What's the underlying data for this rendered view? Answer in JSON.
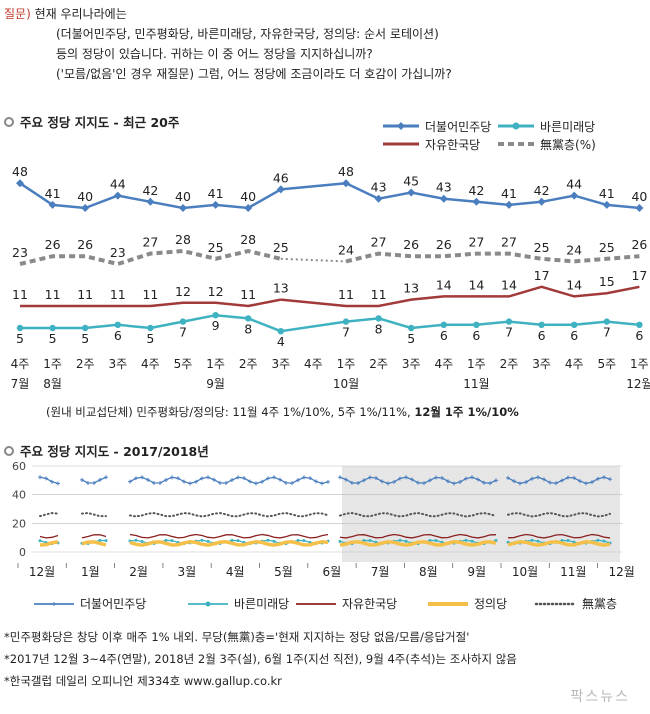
{
  "question": {
    "tag": "질문)",
    "lines": [
      "현재 우리나라에는",
      "(더불어민주당, 민주평화당, 바른미래당, 자유한국당, 정의당: 순서 로테이션)",
      "등의 정당이 있습니다. 귀하는 이 중 어느 정당을 지지하십니까?",
      "('모름/없음'인 경우 재질문) 그럼, 어느 정당에 조금이라도 더 호감이 가십니까?"
    ]
  },
  "chart_data": [
    {
      "type": "line",
      "title": "주요 정당 지지도 - 최근 20주",
      "x": [
        "4주|7월",
        "1주|8월",
        "2주",
        "3주",
        "4주",
        "5주",
        "1주|9월",
        "2주",
        "3주",
        "4주",
        "1주|10월",
        "2주",
        "3주",
        "4주",
        "1주|11월",
        "2주",
        "3주",
        "4주",
        "5주",
        "1주|12월"
      ],
      "series": [
        {
          "name": "더불어민주당",
          "color": "#4a7ebf",
          "marker": "diamond",
          "values": [
            48,
            41,
            40,
            44,
            42,
            40,
            41,
            40,
            46,
            null,
            48,
            43,
            45,
            43,
            42,
            41,
            42,
            44,
            41,
            40
          ]
        },
        {
          "name": "바른미래당",
          "color": "#3fb2c1",
          "marker": "circle",
          "values": [
            5,
            5,
            5,
            6,
            5,
            7,
            9,
            8,
            4,
            null,
            7,
            8,
            5,
            6,
            6,
            7,
            6,
            6,
            7,
            6
          ]
        },
        {
          "name": "자유한국당",
          "color": "#a23a3a",
          "marker": "none",
          "values": [
            11,
            11,
            11,
            11,
            11,
            12,
            12,
            11,
            13,
            null,
            11,
            11,
            13,
            14,
            14,
            14,
            17,
            14,
            15,
            17
          ]
        },
        {
          "name": "無黨층(%)",
          "color": "#8a8a8a",
          "marker": "none",
          "dashed": true,
          "values": [
            23,
            26,
            26,
            23,
            27,
            28,
            25,
            28,
            25,
            null,
            24,
            27,
            26,
            26,
            27,
            27,
            25,
            24,
            25,
            26
          ]
        }
      ],
      "ylim": [
        0,
        55
      ]
    },
    {
      "type": "line",
      "title": "주요 정당 지지도 - 2017/2018년",
      "x_ticks": [
        "12월",
        "1월",
        "2월",
        "3월",
        "4월",
        "5월",
        "6월",
        "7월",
        "8월",
        "9월",
        "10월",
        "11월",
        "12월"
      ],
      "y_ticks": [
        0,
        20,
        40,
        60
      ],
      "ylim": [
        0,
        60
      ],
      "highlight": "6월 - 12월",
      "series": [
        {
          "name": "더불어민주당",
          "color": "#4a7ebf",
          "level": 50
        },
        {
          "name": "바른미래당",
          "color": "#3fb2c1",
          "level": 7
        },
        {
          "name": "자유한국당",
          "color": "#8b2020",
          "level": 11
        },
        {
          "name": "정의당",
          "color": "#f5c04a",
          "level": 6
        },
        {
          "name": "無黨층",
          "color": "#555555",
          "level": 26
        }
      ]
    }
  ],
  "note": {
    "text": "(원내 비교섭단체) 민주평화당/정의당: 11월 4주 1%/10%, 5주 1%/11%, ",
    "bold": "12월 1주 1%/10%"
  },
  "footnotes": [
    "*민주평화당은 창당 이후 매주 1% 내외. 무당(無黨)층='현재 지지하는 정당 없음/모름/응답거절'",
    "*2017년 12월 3~4주(연말), 2018년 2월 3주(설), 6월 1주(지선 직전), 9월 4주(추석)는 조사하지 않음",
    "*한국갤럽 데일리 오피니언 제334호 www.gallup.co.kr"
  ],
  "watermark": "팍스뉴스",
  "colors": {
    "accent": "#c0392b",
    "highlight": "#e6e6e6"
  }
}
